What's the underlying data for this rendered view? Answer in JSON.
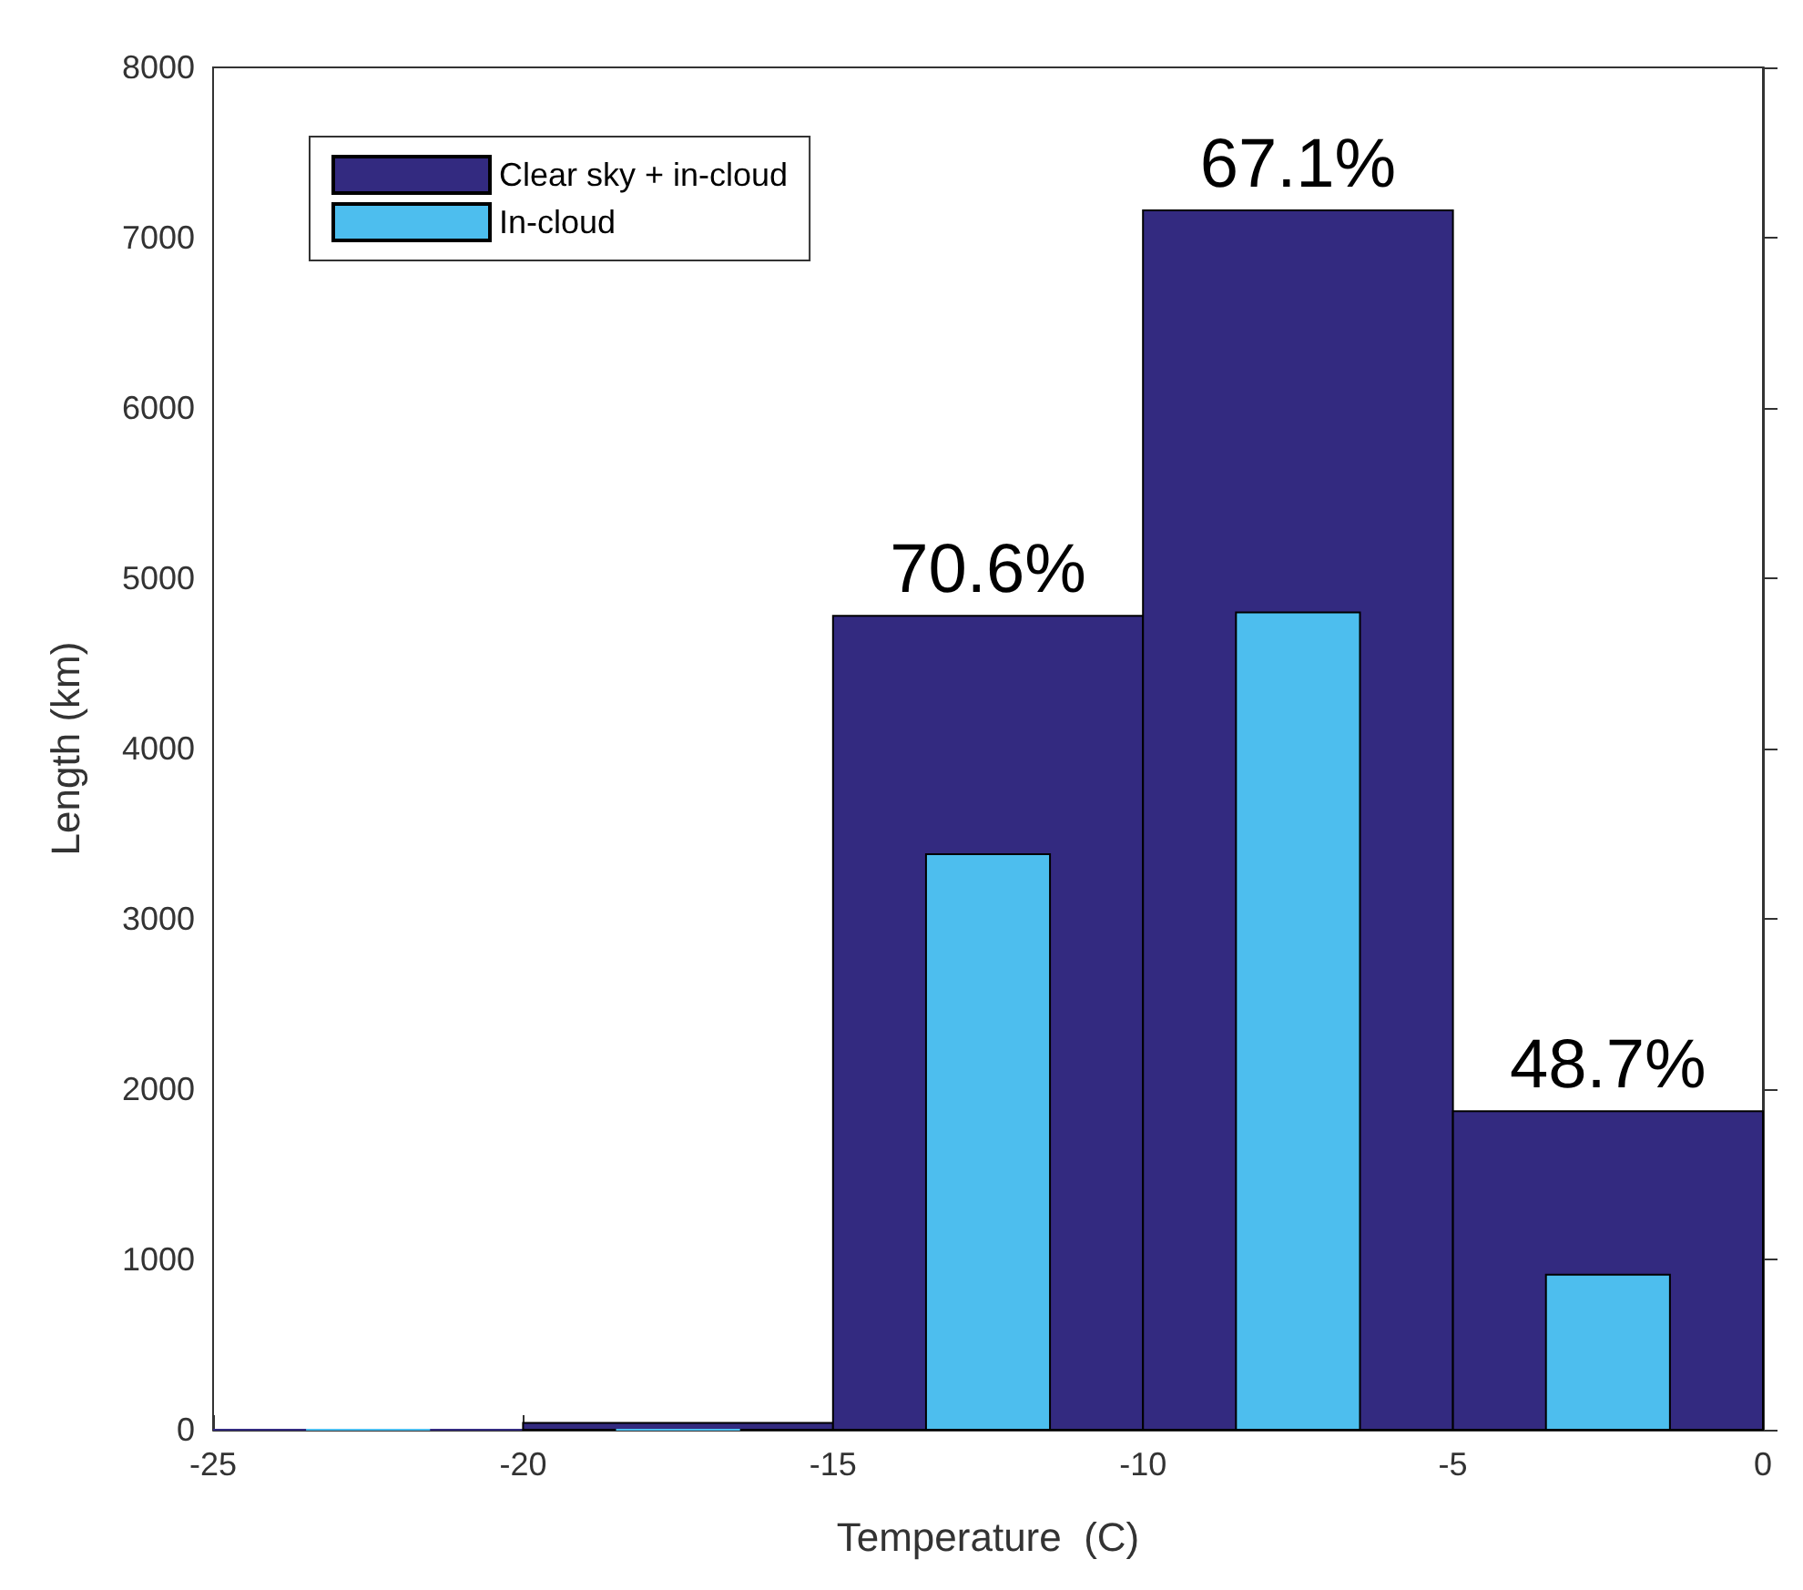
{
  "chart_data": {
    "type": "histogram",
    "xlabel": "Temperature  (C)",
    "ylabel": "Length (km)",
    "bins": [
      -25,
      -20,
      -15,
      -10,
      -5,
      0
    ],
    "series": [
      {
        "name": "Clear sky + in-cloud",
        "color": "#332a80",
        "values": [
          0,
          40,
          4780,
          7160,
          1870
        ]
      },
      {
        "name": "In-cloud",
        "color": "#4dbeee",
        "values": [
          0,
          0,
          3380,
          4800,
          910
        ]
      }
    ],
    "xlim": [
      -25,
      0
    ],
    "xticks": [
      -25,
      -20,
      -15,
      -10,
      -5,
      0
    ],
    "ylim": [
      0,
      8000
    ],
    "yticks": [
      0,
      1000,
      2000,
      3000,
      4000,
      5000,
      6000,
      7000,
      8000
    ],
    "annotations": [
      {
        "text": "70.6%",
        "x": -12.5,
        "y": 4780
      },
      {
        "text": "67.1%",
        "x": -7.5,
        "y": 7160
      },
      {
        "text": "48.7%",
        "x": -2.5,
        "y": 1870
      }
    ],
    "grid": false,
    "legend": "top left"
  }
}
